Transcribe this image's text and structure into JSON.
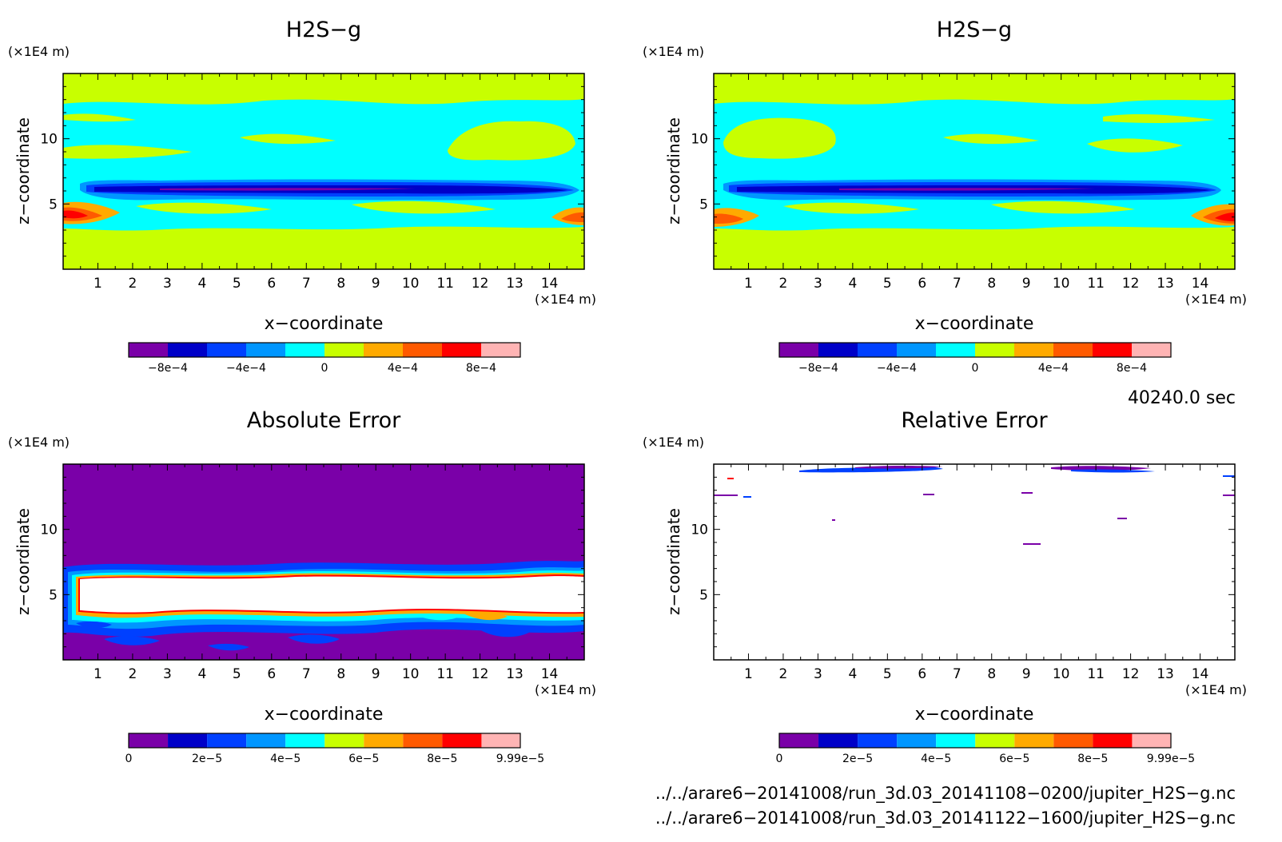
{
  "panels": [
    {
      "title": "H2S−g",
      "xlabel": "x−coordinate",
      "ylabel": "z−coordinate",
      "x_unit": "(×1E4 m)",
      "y_unit": "(×1E4 m)"
    },
    {
      "title": "H2S−g",
      "xlabel": "x−coordinate",
      "ylabel": "z−coordinate",
      "x_unit": "(×1E4 m)",
      "y_unit": "(×1E4 m)"
    },
    {
      "title": "Absolute Error",
      "xlabel": "x−coordinate",
      "ylabel": "z−coordinate",
      "x_unit": "(×1E4 m)",
      "y_unit": "(×1E4 m)"
    },
    {
      "title": "Relative Error",
      "xlabel": "x−coordinate",
      "ylabel": "z−coordinate",
      "x_unit": "(×1E4 m)",
      "y_unit": "(×1E4 m)"
    }
  ],
  "time_label": "40240.0 sec",
  "files": [
    "../../arare6−20141008/run_3d.03_20141108−0200/jupiter_H2S−g.nc",
    "../../arare6−20141008/run_3d.03_20141122−1600/jupiter_H2S−g.nc"
  ],
  "chart_data": [
    {
      "type": "heatmap",
      "title": "H2S−g",
      "xlabel": "x−coordinate",
      "ylabel": "z−coordinate",
      "x_unit": "(×1E4 m)",
      "y_unit": "(×1E4 m)",
      "xlim": [
        0,
        15
      ],
      "ylim": [
        0,
        15
      ],
      "x_ticks": [
        "1",
        "2",
        "3",
        "4",
        "5",
        "6",
        "7",
        "8",
        "9",
        "10",
        "11",
        "12",
        "13",
        "14"
      ],
      "y_ticks": [
        "5",
        "10"
      ],
      "colorbar": {
        "levels": [
          -0.001,
          -0.0008,
          -0.0006,
          -0.0004,
          -0.0002,
          0,
          0.0002,
          0.0004,
          0.0006,
          0.0008,
          0.001
        ],
        "labels": [
          "−8e−4",
          "−4e−4",
          "0",
          "4e−4",
          "8e−4"
        ],
        "label_values": [
          -0.0008,
          -0.0004,
          0,
          0.0004,
          0.0008
        ],
        "colors": [
          "#7a00a8",
          "#0000c8",
          "#0040ff",
          "#0096ff",
          "#00ffff",
          "#c8ff00",
          "#ffaa00",
          "#ff5a00",
          "#ff0000",
          "#ffb4b4"
        ]
      }
    },
    {
      "type": "heatmap",
      "title": "H2S−g",
      "xlabel": "x−coordinate",
      "ylabel": "z−coordinate",
      "x_unit": "(×1E4 m)",
      "y_unit": "(×1E4 m)",
      "xlim": [
        0,
        15
      ],
      "ylim": [
        0,
        15
      ],
      "x_ticks": [
        "1",
        "2",
        "3",
        "4",
        "5",
        "6",
        "7",
        "8",
        "9",
        "10",
        "11",
        "12",
        "13",
        "14"
      ],
      "y_ticks": [
        "5",
        "10"
      ],
      "colorbar": {
        "levels": [
          -0.001,
          -0.0008,
          -0.0006,
          -0.0004,
          -0.0002,
          0,
          0.0002,
          0.0004,
          0.0006,
          0.0008,
          0.001
        ],
        "labels": [
          "−8e−4",
          "−4e−4",
          "0",
          "4e−4",
          "8e−4"
        ],
        "label_values": [
          -0.0008,
          -0.0004,
          0,
          0.0004,
          0.0008
        ],
        "colors": [
          "#7a00a8",
          "#0000c8",
          "#0040ff",
          "#0096ff",
          "#00ffff",
          "#c8ff00",
          "#ffaa00",
          "#ff5a00",
          "#ff0000",
          "#ffb4b4"
        ]
      }
    },
    {
      "type": "heatmap",
      "title": "Absolute Error",
      "xlabel": "x−coordinate",
      "ylabel": "z−coordinate",
      "x_unit": "(×1E4 m)",
      "y_unit": "(×1E4 m)",
      "xlim": [
        0,
        15
      ],
      "ylim": [
        0,
        15
      ],
      "x_ticks": [
        "1",
        "2",
        "3",
        "4",
        "5",
        "6",
        "7",
        "8",
        "9",
        "10",
        "11",
        "12",
        "13",
        "14"
      ],
      "y_ticks": [
        "5",
        "10"
      ],
      "colorbar": {
        "levels": [
          0,
          1e-05,
          2e-05,
          3e-05,
          4e-05,
          5e-05,
          6e-05,
          7e-05,
          8e-05,
          9e-05,
          9.99e-05
        ],
        "labels": [
          "0",
          "2e−5",
          "4e−5",
          "6e−5",
          "8e−5",
          "9.99e−5"
        ],
        "label_values": [
          0,
          2e-05,
          4e-05,
          6e-05,
          8e-05,
          9.99e-05
        ],
        "colors": [
          "#7a00a8",
          "#0000c8",
          "#0040ff",
          "#0096ff",
          "#00ffff",
          "#c8ff00",
          "#ffaa00",
          "#ff5a00",
          "#ff0000",
          "#ffb4b4"
        ]
      }
    },
    {
      "type": "heatmap",
      "title": "Relative Error",
      "xlabel": "x−coordinate",
      "ylabel": "z−coordinate",
      "x_unit": "(×1E4 m)",
      "y_unit": "(×1E4 m)",
      "xlim": [
        0,
        15
      ],
      "ylim": [
        0,
        15
      ],
      "x_ticks": [
        "1",
        "2",
        "3",
        "4",
        "5",
        "6",
        "7",
        "8",
        "9",
        "10",
        "11",
        "12",
        "13",
        "14"
      ],
      "y_ticks": [
        "5",
        "10"
      ],
      "colorbar": {
        "levels": [
          0,
          1e-05,
          2e-05,
          3e-05,
          4e-05,
          5e-05,
          6e-05,
          7e-05,
          8e-05,
          9e-05,
          9.99e-05
        ],
        "labels": [
          "0",
          "2e−5",
          "4e−5",
          "6e−5",
          "8e−5",
          "9.99e−5"
        ],
        "label_values": [
          0,
          2e-05,
          4e-05,
          6e-05,
          8e-05,
          9.99e-05
        ],
        "colors": [
          "#7a00a8",
          "#0000c8",
          "#0040ff",
          "#0096ff",
          "#00ffff",
          "#c8ff00",
          "#ffaa00",
          "#ff5a00",
          "#ff0000",
          "#ffb4b4"
        ]
      }
    }
  ]
}
